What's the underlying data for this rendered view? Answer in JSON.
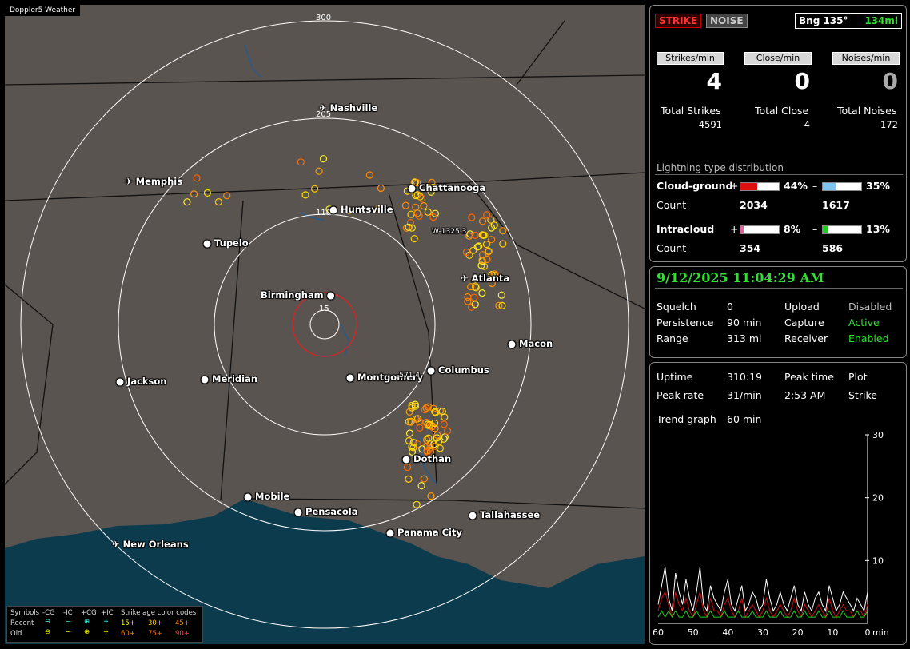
{
  "map": {
    "title": "Doppler5 Weather",
    "ring_labels": {
      "r300": "300",
      "r205": "205",
      "r110": "110",
      "r15": "15"
    },
    "cities": {
      "nashville": "Nashville",
      "memphis": "Memphis",
      "chattanooga": "Chattanooga",
      "huntsville": "Huntsville",
      "tupelo": "Tupelo",
      "atlanta": "Atlanta",
      "birmingham": "Birmingham",
      "macon": "Macon",
      "jackson": "Jackson",
      "meridian": "Meridian",
      "montgomery": "Montgomery",
      "columbus": "Columbus",
      "dothan": "Dothan",
      "mobile": "Mobile",
      "pensacola": "Pensacola",
      "tallahassee": "Tallahassee",
      "panama_city": "Panama City",
      "new_orleans": "New Orleans"
    },
    "storm_labels": {
      "s1": "W-1325  3",
      "s2": "-571  4"
    },
    "legend": {
      "symbols": "Symbols",
      "cg_neg": "-CG",
      "ic_neg": "-IC",
      "cg_pos": "+CG",
      "ic_pos": "+IC",
      "age_title": "Strike age color codes",
      "recent": "Recent",
      "old": "Old",
      "ages": [
        "15+",
        "30+",
        "45+",
        "60+",
        "75+",
        "90+"
      ]
    }
  },
  "status": {
    "strike_tag": "STRIKE",
    "noise_tag": "NOISE",
    "bearing": "Bng 135°",
    "distance": "134mi",
    "strikes_per_min_label": "Strikes/min",
    "close_per_min_label": "Close/min",
    "noises_per_min_label": "Noises/min",
    "strikes_per_min": "4",
    "close_per_min": "0",
    "noises_per_min": "0",
    "total_strikes_label": "Total Strikes",
    "total_close_label": "Total Close",
    "total_noises_label": "Total Noises",
    "total_strikes": "4591",
    "total_close": "4",
    "total_noises": "172"
  },
  "distribution": {
    "title": "Lightning type distribution",
    "cloud_ground": "Cloud-ground",
    "intracloud": "Intracloud",
    "count": "Count",
    "plus": "+",
    "minus": "–",
    "cg_pos_pct": "44%",
    "cg_neg_pct": "35%",
    "ic_pos_pct": "8%",
    "ic_neg_pct": "13%",
    "cg_pos_count": "2034",
    "cg_neg_count": "1617",
    "ic_pos_count": "354",
    "ic_neg_count": "586",
    "cg_pos_frac": 0.44,
    "cg_neg_frac": 0.35,
    "ic_pos_frac": 0.08,
    "ic_neg_frac": 0.13
  },
  "settings": {
    "datetime": "9/12/2025 11:04:29 AM",
    "squelch_label": "Squelch",
    "squelch": "0",
    "persistence_label": "Persistence",
    "persistence": "90 min",
    "range_label": "Range",
    "range": "313 mi",
    "upload_label": "Upload",
    "upload": "Disabled",
    "capture_label": "Capture",
    "capture": "Active",
    "receiver_label": "Receiver",
    "receiver": "Enabled"
  },
  "stats": {
    "uptime_label": "Uptime",
    "uptime": "310:19",
    "peak_time_label": "Peak time",
    "peak_time": "2:53 AM",
    "plot_label": "Plot",
    "plot": "Strike",
    "peak_rate_label": "Peak rate",
    "peak_rate": "31/min",
    "trend_label": "Trend graph",
    "trend": "60 min"
  },
  "chart_data": {
    "type": "line",
    "x_ticks": [
      "60",
      "50",
      "40",
      "30",
      "20",
      "10",
      "0"
    ],
    "x_unit": "min",
    "y_ticks": [
      "30",
      "20",
      "10"
    ],
    "ylim": [
      0,
      30
    ],
    "xlim": [
      60,
      0
    ],
    "series": [
      {
        "color": "#ffffff",
        "values": [
          3,
          6,
          9,
          4,
          2,
          8,
          5,
          3,
          7,
          4,
          2,
          5,
          9,
          3,
          2,
          6,
          4,
          3,
          2,
          5,
          7,
          3,
          2,
          4,
          6,
          2,
          3,
          5,
          4,
          2,
          3,
          7,
          4,
          2,
          3,
          5,
          3,
          2,
          4,
          6,
          3,
          2,
          5,
          3,
          2,
          4,
          5,
          3,
          2,
          6,
          4,
          2,
          3,
          5,
          4,
          3,
          2,
          4,
          3,
          2,
          5
        ]
      },
      {
        "color": "#cc1111",
        "values": [
          2,
          4,
          5,
          3,
          1,
          5,
          3,
          2,
          4,
          2,
          1,
          3,
          5,
          2,
          1,
          4,
          2,
          2,
          1,
          3,
          4,
          2,
          1,
          2,
          4,
          1,
          2,
          3,
          2,
          1,
          2,
          4,
          2,
          1,
          2,
          3,
          2,
          1,
          2,
          4,
          2,
          1,
          3,
          2,
          1,
          2,
          3,
          2,
          1,
          4,
          2,
          1,
          2,
          3,
          2,
          2,
          1,
          2,
          2,
          1,
          3
        ]
      },
      {
        "color": "#22cc22",
        "values": [
          1,
          2,
          1,
          2,
          1,
          2,
          1,
          1,
          2,
          1,
          1,
          2,
          1,
          1,
          1,
          2,
          1,
          1,
          1,
          2,
          1,
          1,
          1,
          2,
          1,
          1,
          1,
          2,
          1,
          1,
          1,
          2,
          1,
          1,
          1,
          2,
          1,
          1,
          1,
          2,
          1,
          1,
          2,
          1,
          1,
          1,
          2,
          1,
          1,
          2,
          1,
          1,
          1,
          2,
          1,
          1,
          1,
          2,
          1,
          1,
          2
        ]
      }
    ]
  }
}
